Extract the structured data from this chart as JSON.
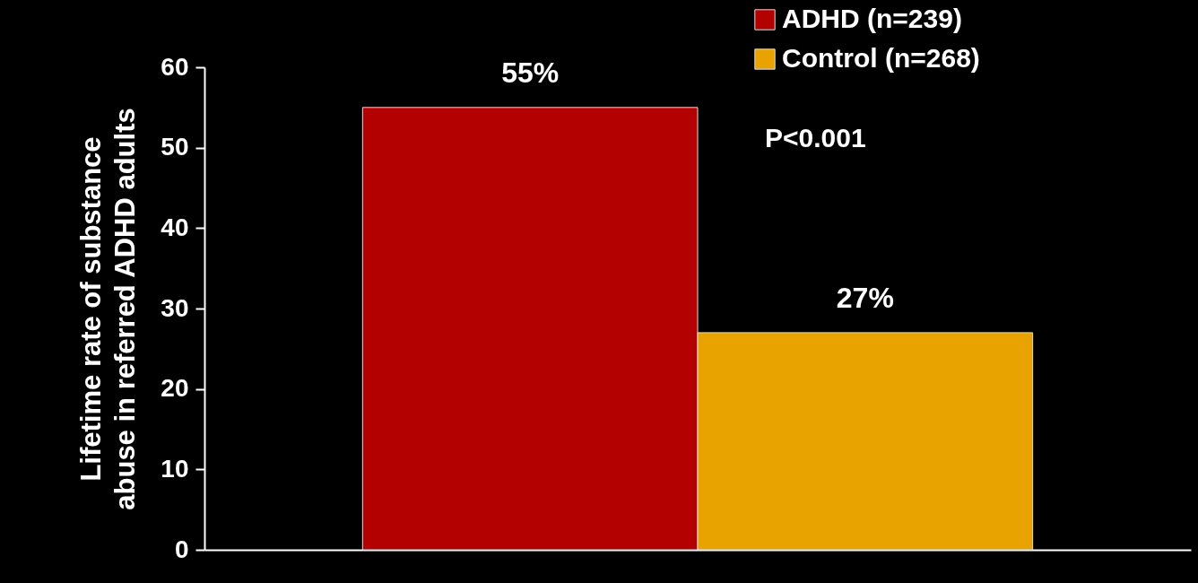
{
  "chart_data": {
    "type": "bar",
    "categories": [
      null
    ],
    "series": [
      {
        "name": "ADHD (n=239)",
        "color": "#b30000",
        "values": [
          55
        ]
      },
      {
        "name": "Control (n=268)",
        "color": "#e8a300",
        "values": [
          27
        ]
      }
    ],
    "value_labels": [
      [
        "55%"
      ],
      [
        "27%"
      ]
    ],
    "ylabel": "Lifetime rate of substance\nabuse in referred ADHD adults",
    "ylim": [
      0,
      60
    ],
    "yticks": [
      0,
      10,
      20,
      30,
      40,
      50,
      60
    ],
    "annotations": [
      "P<0.001"
    ],
    "grid": false,
    "legend": "top right"
  }
}
